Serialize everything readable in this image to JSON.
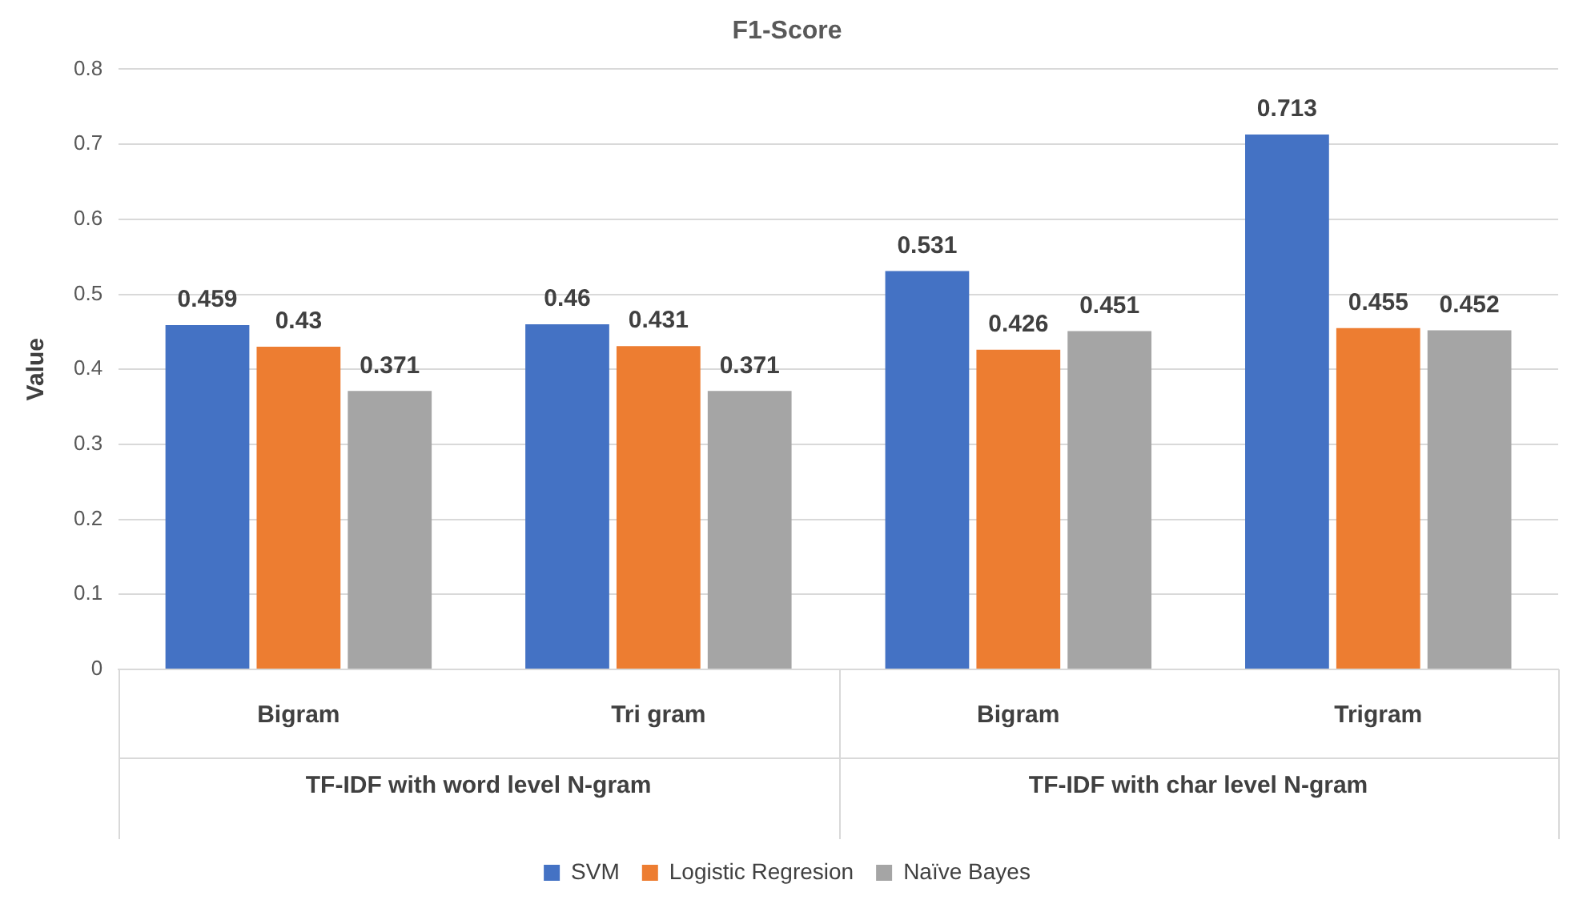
{
  "chart_data": {
    "type": "bar",
    "title": "F1-Score",
    "ylabel": "Value",
    "categories": [
      "Bigram",
      "Tri gram",
      "Bigram",
      "Trigram"
    ],
    "series": [
      {
        "name": "SVM",
        "color": "#4472c4",
        "values": [
          0.459,
          0.46,
          0.531,
          0.713
        ]
      },
      {
        "name": "Logistic Regresion",
        "color": "#ed7d31",
        "values": [
          0.43,
          0.431,
          0.426,
          0.455
        ]
      },
      {
        "name": "Naïve Bayes",
        "color": "#a5a5a5",
        "values": [
          0.371,
          0.371,
          0.451,
          0.452
        ]
      }
    ],
    "annotations": [
      "TF-IDF with word level N-gram",
      "TF-IDF with char level N-gram"
    ],
    "ylim": [
      0,
      0.8
    ],
    "yticks": [
      0,
      0.1,
      0.2,
      0.3,
      0.4,
      0.5,
      0.6,
      0.7,
      0.8
    ],
    "grid": "y",
    "legend": "bottom",
    "data_labels": true
  }
}
